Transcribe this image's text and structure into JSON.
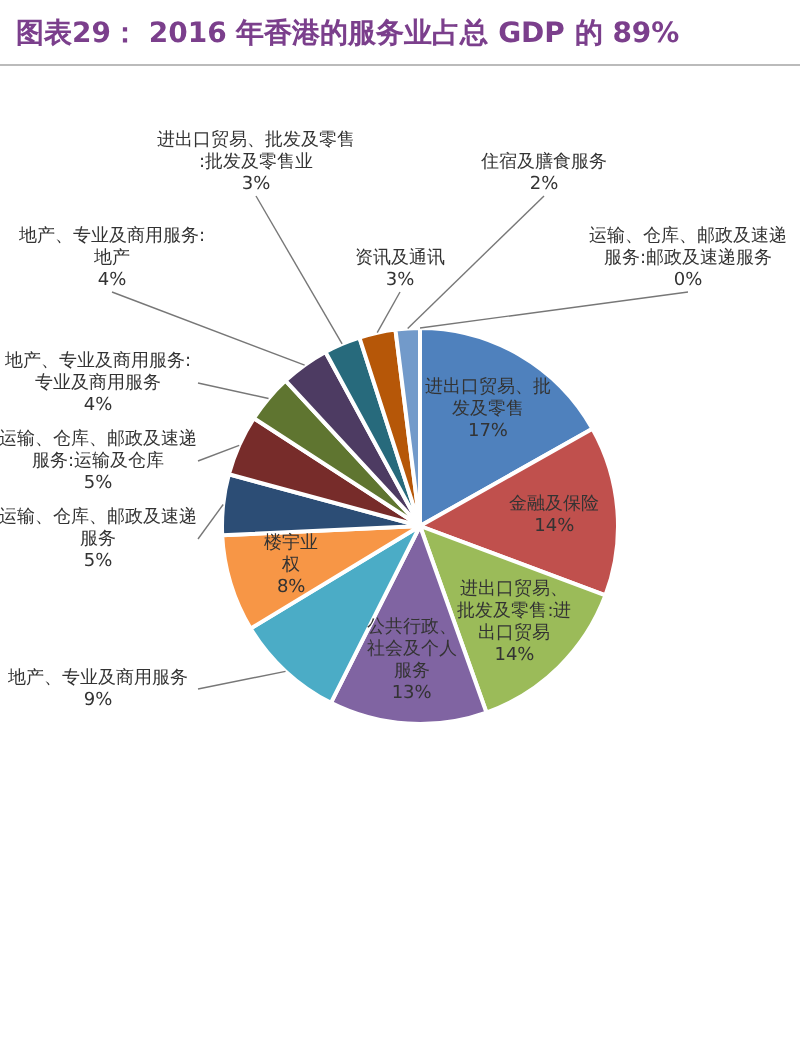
{
  "chart_data": {
    "type": "pie",
    "title": "图表29： 2016 年香港的服务业占总 GDP 的 89%",
    "categories": [
      "进出口贸易、批发及零售",
      "金融及保险",
      "进出口贸易、批发及零售:进出口贸易",
      "公共行政、社会及个人服务",
      "地产、专业及商用服务",
      "楼宇业权",
      "运输、仓库、邮政及速递服务",
      "运输、仓库、邮政及速递服务:运输及仓库",
      "地产、专业及商用服务:专业及商用服务",
      "地产、专业及商用服务:地产",
      "进出口贸易、批发及零售:批发及零售业",
      "资讯及通讯",
      "住宿及膳食服务",
      "运输、仓库、邮政及速递服务:邮政及速递服务"
    ],
    "values": [
      17,
      14,
      14,
      13,
      9,
      8,
      5,
      5,
      4,
      4,
      3,
      3,
      2,
      0
    ],
    "value_labels": [
      "17%",
      "14%",
      "14%",
      "13%",
      "9%",
      "8%",
      "5%",
      "5%",
      "4%",
      "4%",
      "3%",
      "3%",
      "2%",
      "0%"
    ],
    "colors": [
      "#4f81bd",
      "#c0504d",
      "#9bbb59",
      "#8064a2",
      "#4bacc6",
      "#f79646",
      "#2c4d75",
      "#772c2a",
      "#5f7530",
      "#4d3b62",
      "#276a7c",
      "#b65708",
      "#729aca",
      "#d99694"
    ],
    "legend": false
  }
}
